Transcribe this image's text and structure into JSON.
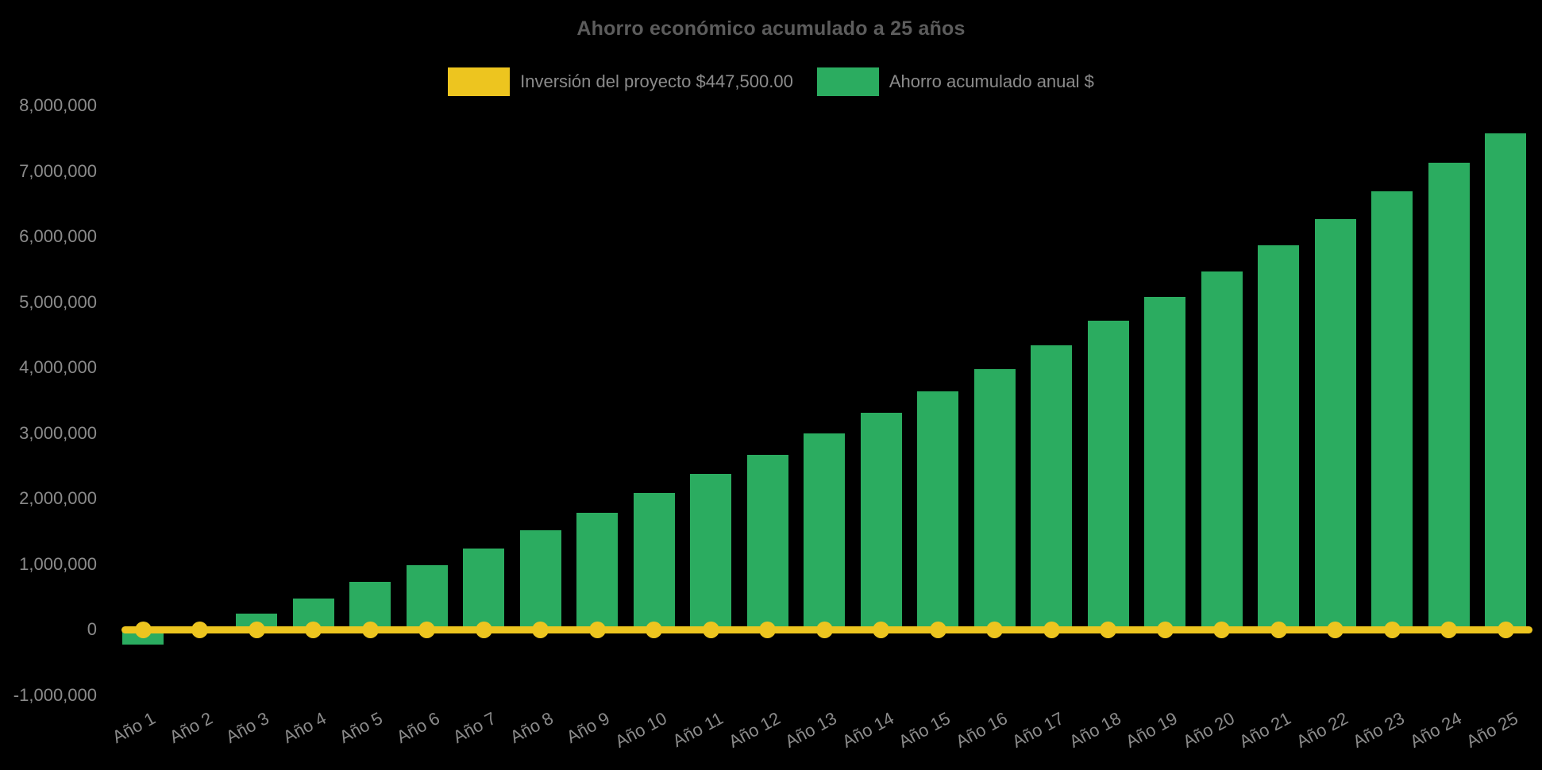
{
  "title": "Ahorro económico acumulado a 25 años",
  "legend": {
    "items": [
      {
        "id": "investment",
        "label": "Inversión del proyecto $447,500.00",
        "color": "#EDC51F"
      },
      {
        "id": "savings",
        "label": "Ahorro acumulado anual $",
        "color": "#2BAC60"
      }
    ]
  },
  "colors": {
    "background": "#000000",
    "bar_green": "#2BAC60",
    "line_yellow": "#EDC51F",
    "title_gray": "#5c5c5c",
    "tick_gray": "#8b8b8b"
  },
  "chart_data": {
    "type": "bar",
    "title": "Ahorro económico acumulado a 25 años",
    "categories": [
      "Año 1",
      "Año 2",
      "Año 3",
      "Año 4",
      "Año 5",
      "Año 6",
      "Año 7",
      "Año 8",
      "Año 9",
      "Año 10",
      "Año 11",
      "Año 12",
      "Año 13",
      "Año 14",
      "Año 15",
      "Año 16",
      "Año 17",
      "Año 18",
      "Año 19",
      "Año 20",
      "Año 21",
      "Año 22",
      "Año 23",
      "Año 24",
      "Año 25"
    ],
    "series": [
      {
        "name": "Ahorro acumulado anual $",
        "type": "bar",
        "color": "#2BAC60",
        "values": [
          -230000,
          0,
          240000,
          470000,
          730000,
          980000,
          1240000,
          1520000,
          1780000,
          2080000,
          2370000,
          2670000,
          2990000,
          3310000,
          3640000,
          3980000,
          4340000,
          4710000,
          5080000,
          5470000,
          5870000,
          6270000,
          6690000,
          7130000,
          7580000
        ]
      },
      {
        "name": "Inversión del proyecto $447,500.00",
        "type": "line",
        "color": "#EDC51F",
        "investment_amount_label": 447500,
        "drawn_at_value": 0,
        "point_style": "circle"
      }
    ],
    "xlabel": "",
    "ylabel": "",
    "ylim": [
      -1000000,
      8000000
    ],
    "ytick_step": 1000000,
    "ytick_labels_top_to_bottom": [
      "8,000,000",
      "7,000,000",
      "6,000,000",
      "5,000,000",
      "4,000,000",
      "3,000,000",
      "2,000,000",
      "1,000,000",
      "0",
      "-1,000,000"
    ],
    "ytick_values_top_to_bottom": [
      8000000,
      7000000,
      6000000,
      5000000,
      4000000,
      3000000,
      2000000,
      1000000,
      0,
      -1000000
    ],
    "grid": false,
    "legend_position": "top",
    "background": "black"
  }
}
